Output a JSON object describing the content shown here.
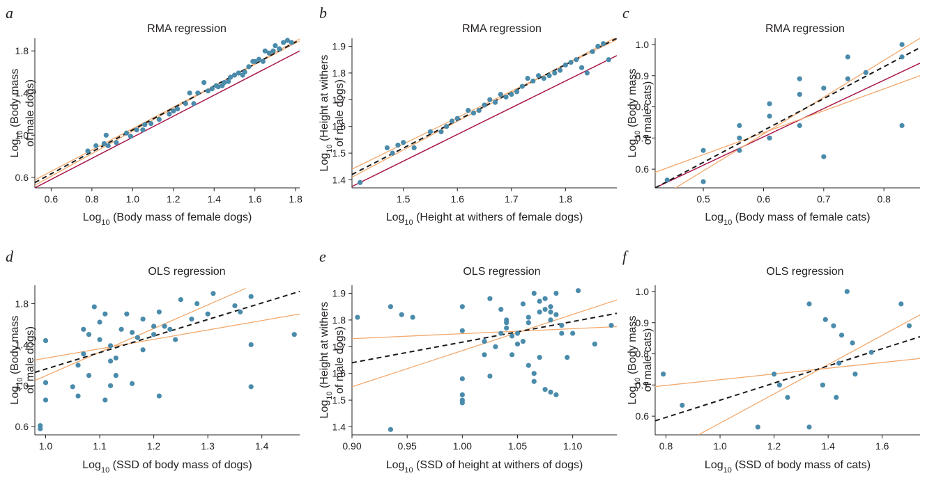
{
  "chart_data": [
    {
      "panel": "a",
      "title": "RMA regression",
      "type": "scatter",
      "xlabel": [
        "Log",
        "10",
        " (Body mass of female dogs)"
      ],
      "ylabel": [
        "Log",
        "10",
        " (Body mass",
        "of male dogs)"
      ],
      "xlim": [
        0.52,
        1.82
      ],
      "ylim": [
        0.5,
        1.92
      ],
      "xticks": [
        0.6,
        0.8,
        1.0,
        1.2,
        1.4,
        1.6,
        1.8
      ],
      "yticks": [
        0.6,
        1.0,
        1.4,
        1.8
      ],
      "tick_decimals": 1,
      "points": [
        [
          0.78,
          0.85
        ],
        [
          0.82,
          0.9
        ],
        [
          0.86,
          0.92
        ],
        [
          0.87,
          1.0
        ],
        [
          0.88,
          0.9
        ],
        [
          0.92,
          0.93
        ],
        [
          0.97,
          1.02
        ],
        [
          0.99,
          0.99
        ],
        [
          1.02,
          1.05
        ],
        [
          1.05,
          1.05
        ],
        [
          1.06,
          1.1
        ],
        [
          1.09,
          1.11
        ],
        [
          1.13,
          1.15
        ],
        [
          1.18,
          1.2
        ],
        [
          1.2,
          1.23
        ],
        [
          1.22,
          1.25
        ],
        [
          1.26,
          1.3
        ],
        [
          1.28,
          1.4
        ],
        [
          1.3,
          1.3
        ],
        [
          1.32,
          1.4
        ],
        [
          1.35,
          1.5
        ],
        [
          1.37,
          1.42
        ],
        [
          1.39,
          1.44
        ],
        [
          1.41,
          1.47
        ],
        [
          1.42,
          1.46
        ],
        [
          1.44,
          1.47
        ],
        [
          1.45,
          1.5
        ],
        [
          1.47,
          1.51
        ],
        [
          1.48,
          1.55
        ],
        [
          1.5,
          1.57
        ],
        [
          1.52,
          1.59
        ],
        [
          1.54,
          1.57
        ],
        [
          1.55,
          1.6
        ],
        [
          1.57,
          1.65
        ],
        [
          1.59,
          1.7
        ],
        [
          1.6,
          1.7
        ],
        [
          1.62,
          1.72
        ],
        [
          1.64,
          1.7
        ],
        [
          1.65,
          1.8
        ],
        [
          1.67,
          1.78
        ],
        [
          1.69,
          1.8
        ],
        [
          1.7,
          1.85
        ],
        [
          1.72,
          1.82
        ],
        [
          1.74,
          1.88
        ],
        [
          1.76,
          1.9
        ],
        [
          1.78,
          1.88
        ]
      ],
      "lines": [
        {
          "kind": "isometry",
          "from": [
            0.52,
            0.5
          ],
          "to": [
            1.82,
            1.8
          ]
        },
        {
          "kind": "ci",
          "from": [
            0.52,
            0.575
          ],
          "to": [
            1.82,
            1.895
          ]
        },
        {
          "kind": "ci",
          "from": [
            0.52,
            0.525
          ],
          "to": [
            1.82,
            1.915
          ]
        },
        {
          "kind": "fit",
          "from": [
            0.52,
            0.55
          ],
          "to": [
            1.82,
            1.905
          ]
        }
      ]
    },
    {
      "panel": "b",
      "title": "RMA regression",
      "type": "scatter",
      "xlabel": [
        "Log",
        "10",
        " (Height at withers of female dogs)"
      ],
      "ylabel": [
        "Log",
        "10",
        " (Height at withers",
        "of male dogs)"
      ],
      "xlim": [
        1.405,
        1.895
      ],
      "ylim": [
        1.37,
        1.93
      ],
      "xticks": [
        1.5,
        1.6,
        1.7,
        1.8
      ],
      "yticks": [
        1.4,
        1.5,
        1.6,
        1.7,
        1.8,
        1.9
      ],
      "tick_decimals": 1,
      "points": [
        [
          1.42,
          1.39
        ],
        [
          1.47,
          1.52
        ],
        [
          1.48,
          1.5
        ],
        [
          1.49,
          1.53
        ],
        [
          1.5,
          1.54
        ],
        [
          1.52,
          1.52
        ],
        [
          1.55,
          1.58
        ],
        [
          1.57,
          1.58
        ],
        [
          1.58,
          1.6
        ],
        [
          1.59,
          1.62
        ],
        [
          1.6,
          1.63
        ],
        [
          1.62,
          1.66
        ],
        [
          1.63,
          1.65
        ],
        [
          1.64,
          1.66
        ],
        [
          1.65,
          1.68
        ],
        [
          1.66,
          1.7
        ],
        [
          1.67,
          1.69
        ],
        [
          1.68,
          1.72
        ],
        [
          1.69,
          1.71
        ],
        [
          1.7,
          1.72
        ],
        [
          1.71,
          1.73
        ],
        [
          1.72,
          1.75
        ],
        [
          1.73,
          1.78
        ],
        [
          1.74,
          1.77
        ],
        [
          1.75,
          1.79
        ],
        [
          1.76,
          1.78
        ],
        [
          1.77,
          1.79
        ],
        [
          1.78,
          1.8
        ],
        [
          1.79,
          1.81
        ],
        [
          1.8,
          1.83
        ],
        [
          1.81,
          1.84
        ],
        [
          1.82,
          1.85
        ],
        [
          1.83,
          1.82
        ],
        [
          1.84,
          1.8
        ],
        [
          1.85,
          1.88
        ],
        [
          1.86,
          1.9
        ],
        [
          1.87,
          1.91
        ],
        [
          1.88,
          1.85
        ]
      ],
      "lines": [
        {
          "kind": "isometry",
          "from": [
            1.405,
            1.375
          ],
          "to": [
            1.895,
            1.865
          ]
        },
        {
          "kind": "ci",
          "from": [
            1.405,
            1.44
          ],
          "to": [
            1.895,
            1.925
          ]
        },
        {
          "kind": "ci",
          "from": [
            1.405,
            1.41
          ],
          "to": [
            1.895,
            1.935
          ]
        },
        {
          "kind": "fit",
          "from": [
            1.405,
            1.42
          ],
          "to": [
            1.895,
            1.93
          ]
        }
      ]
    },
    {
      "panel": "c",
      "title": "RMA regression",
      "type": "scatter",
      "xlabel": [
        "Log",
        "10",
        " (Body mass of female cats)"
      ],
      "ylabel": [
        "Log",
        "10",
        " (Body mass",
        "of male cats)"
      ],
      "xlim": [
        0.42,
        0.86
      ],
      "ylim": [
        0.54,
        1.02
      ],
      "xticks": [
        0.5,
        0.6,
        0.7,
        0.8
      ],
      "yticks": [
        0.6,
        0.7,
        0.8,
        0.9,
        1.0
      ],
      "tick_decimals": 1,
      "points": [
        [
          0.44,
          0.565
        ],
        [
          0.5,
          0.56
        ],
        [
          0.5,
          0.66
        ],
        [
          0.56,
          0.66
        ],
        [
          0.56,
          0.7
        ],
        [
          0.56,
          0.74
        ],
        [
          0.61,
          0.7
        ],
        [
          0.61,
          0.77
        ],
        [
          0.61,
          0.81
        ],
        [
          0.66,
          0.74
        ],
        [
          0.66,
          0.84
        ],
        [
          0.66,
          0.89
        ],
        [
          0.7,
          0.64
        ],
        [
          0.7,
          0.86
        ],
        [
          0.74,
          0.89
        ],
        [
          0.74,
          0.96
        ],
        [
          0.77,
          0.91
        ],
        [
          0.83,
          0.96
        ],
        [
          0.83,
          1.0
        ],
        [
          0.83,
          0.74
        ]
      ],
      "lines": [
        {
          "kind": "isometry",
          "from": [
            0.42,
            0.54
          ],
          "to": [
            0.86,
            0.94
          ]
        },
        {
          "kind": "ci",
          "from": [
            0.42,
            0.59
          ],
          "to": [
            0.86,
            0.9
          ]
        },
        {
          "kind": "ci",
          "from": [
            0.42,
            0.5
          ],
          "to": [
            0.86,
            1.02
          ]
        },
        {
          "kind": "fit",
          "from": [
            0.42,
            0.54
          ],
          "to": [
            0.86,
            0.99
          ]
        }
      ]
    },
    {
      "panel": "d",
      "title": "OLS regression",
      "type": "scatter",
      "xlabel": [
        "Log",
        "10",
        " (SSD of body mass of dogs)"
      ],
      "ylabel": [
        "Log",
        "10",
        " (Body mass",
        "of male dogs)"
      ],
      "xlim": [
        0.98,
        1.47
      ],
      "ylim": [
        0.52,
        1.98
      ],
      "xticks": [
        1.0,
        1.1,
        1.2,
        1.3,
        1.4
      ],
      "yticks": [
        0.6,
        1.0,
        1.4,
        1.8
      ],
      "tick_decimals": 1,
      "points": [
        [
          0.99,
          0.58
        ],
        [
          0.99,
          0.61
        ],
        [
          1.0,
          0.86
        ],
        [
          1.0,
          1.03
        ],
        [
          1.0,
          1.44
        ],
        [
          1.05,
          0.99
        ],
        [
          1.06,
          0.9
        ],
        [
          1.06,
          1.2
        ],
        [
          1.07,
          1.31
        ],
        [
          1.07,
          1.55
        ],
        [
          1.08,
          1.1
        ],
        [
          1.08,
          1.5
        ],
        [
          1.09,
          1.77
        ],
        [
          1.1,
          1.45
        ],
        [
          1.1,
          1.62
        ],
        [
          1.11,
          1.7
        ],
        [
          1.11,
          0.86
        ],
        [
          1.12,
          1.0
        ],
        [
          1.12,
          1.24
        ],
        [
          1.12,
          1.39
        ],
        [
          1.13,
          1.1
        ],
        [
          1.13,
          1.27
        ],
        [
          1.14,
          1.55
        ],
        [
          1.15,
          1.7
        ],
        [
          1.16,
          1.02
        ],
        [
          1.16,
          1.52
        ],
        [
          1.17,
          1.47
        ],
        [
          1.18,
          1.65
        ],
        [
          1.18,
          1.35
        ],
        [
          1.2,
          1.5
        ],
        [
          1.2,
          1.58
        ],
        [
          1.21,
          0.9
        ],
        [
          1.21,
          1.72
        ],
        [
          1.22,
          1.58
        ],
        [
          1.23,
          1.55
        ],
        [
          1.24,
          1.45
        ],
        [
          1.25,
          1.84
        ],
        [
          1.27,
          1.65
        ],
        [
          1.28,
          1.8
        ],
        [
          1.3,
          1.7
        ],
        [
          1.31,
          1.9
        ],
        [
          1.35,
          1.78
        ],
        [
          1.36,
          1.72
        ],
        [
          1.38,
          1.4
        ],
        [
          1.38,
          0.99
        ],
        [
          1.38,
          1.87
        ],
        [
          1.46,
          1.5
        ]
      ],
      "lines": [
        {
          "kind": "ci",
          "from": [
            0.98,
            1.25
          ],
          "to": [
            1.47,
            1.7
          ]
        },
        {
          "kind": "ci",
          "from": [
            0.98,
            1.05
          ],
          "to": [
            1.37,
            1.95
          ]
        },
        {
          "kind": "fit",
          "from": [
            0.98,
            1.13
          ],
          "to": [
            1.47,
            1.92
          ]
        }
      ]
    },
    {
      "panel": "e",
      "title": "OLS regression",
      "type": "scatter",
      "xlabel": [
        "Log",
        "10",
        " (SSD of height at withers of dogs)"
      ],
      "ylabel": [
        "Log",
        "10",
        " (Height at withers",
        "of male dogs)"
      ],
      "xlim": [
        0.9,
        1.14
      ],
      "ylim": [
        1.37,
        1.93
      ],
      "xticks": [
        0.9,
        0.95,
        1.0,
        1.05,
        1.1
      ],
      "yticks": [
        1.4,
        1.5,
        1.6,
        1.7,
        1.8,
        1.9
      ],
      "tick_decimals": 2,
      "tick_decimals_y": 1,
      "points": [
        [
          0.905,
          1.81
        ],
        [
          0.935,
          1.85
        ],
        [
          0.935,
          1.39
        ],
        [
          0.945,
          1.82
        ],
        [
          0.955,
          1.81
        ],
        [
          1.0,
          1.85
        ],
        [
          1.0,
          1.76
        ],
        [
          1.0,
          1.58
        ],
        [
          1.0,
          1.52
        ],
        [
          1.0,
          1.5
        ],
        [
          1.0,
          1.49
        ],
        [
          1.02,
          1.72
        ],
        [
          1.02,
          1.67
        ],
        [
          1.025,
          1.59
        ],
        [
          1.025,
          1.88
        ],
        [
          1.03,
          1.7
        ],
        [
          1.035,
          1.75
        ],
        [
          1.035,
          1.84
        ],
        [
          1.04,
          1.8
        ],
        [
          1.04,
          1.79
        ],
        [
          1.04,
          1.77
        ],
        [
          1.045,
          1.74
        ],
        [
          1.045,
          1.67
        ],
        [
          1.05,
          1.75
        ],
        [
          1.05,
          1.71
        ],
        [
          1.055,
          1.86
        ],
        [
          1.055,
          1.72
        ],
        [
          1.06,
          1.63
        ],
        [
          1.06,
          1.79
        ],
        [
          1.06,
          1.81
        ],
        [
          1.065,
          1.6
        ],
        [
          1.065,
          1.57
        ],
        [
          1.065,
          1.9
        ],
        [
          1.07,
          1.87
        ],
        [
          1.07,
          1.83
        ],
        [
          1.07,
          1.66
        ],
        [
          1.075,
          1.88
        ],
        [
          1.075,
          1.54
        ],
        [
          1.075,
          1.84
        ],
        [
          1.08,
          1.85
        ],
        [
          1.08,
          1.83
        ],
        [
          1.08,
          1.8
        ],
        [
          1.08,
          1.53
        ],
        [
          1.085,
          1.52
        ],
        [
          1.085,
          1.9
        ],
        [
          1.085,
          1.82
        ],
        [
          1.09,
          1.75
        ],
        [
          1.09,
          1.78
        ],
        [
          1.095,
          1.66
        ],
        [
          1.1,
          1.75
        ],
        [
          1.105,
          1.91
        ],
        [
          1.12,
          1.71
        ],
        [
          1.135,
          1.78
        ]
      ],
      "lines": [
        {
          "kind": "ci",
          "from": [
            0.9,
            1.73
          ],
          "to": [
            1.14,
            1.775
          ]
        },
        {
          "kind": "ci",
          "from": [
            0.9,
            1.55
          ],
          "to": [
            1.14,
            1.875
          ]
        },
        {
          "kind": "fit",
          "from": [
            0.9,
            1.64
          ],
          "to": [
            1.14,
            1.825
          ]
        }
      ]
    },
    {
      "panel": "f",
      "title": "OLS regression",
      "type": "scatter",
      "xlabel": [
        "Log",
        "10",
        " (SSD of body mass of cats)"
      ],
      "ylabel": [
        "Log",
        "10",
        " (Body mass",
        "of male cats)"
      ],
      "xlim": [
        0.76,
        1.74
      ],
      "ylim": [
        0.54,
        1.02
      ],
      "xticks": [
        0.8,
        1.0,
        1.2,
        1.4,
        1.6
      ],
      "yticks": [
        0.6,
        0.7,
        0.8,
        0.9,
        1.0
      ],
      "tick_decimals": 1,
      "points": [
        [
          0.79,
          0.735
        ],
        [
          0.86,
          0.635
        ],
        [
          1.14,
          0.565
        ],
        [
          1.2,
          0.735
        ],
        [
          1.22,
          0.7
        ],
        [
          1.25,
          0.66
        ],
        [
          1.33,
          0.96
        ],
        [
          1.33,
          0.565
        ],
        [
          1.38,
          0.7
        ],
        [
          1.39,
          0.91
        ],
        [
          1.42,
          0.89
        ],
        [
          1.43,
          0.66
        ],
        [
          1.44,
          0.77
        ],
        [
          1.45,
          0.86
        ],
        [
          1.47,
          1.0
        ],
        [
          1.49,
          0.835
        ],
        [
          1.5,
          0.735
        ],
        [
          1.56,
          0.805
        ],
        [
          1.67,
          0.96
        ],
        [
          1.7,
          0.89
        ]
      ],
      "lines": [
        {
          "kind": "ci",
          "from": [
            0.76,
            0.695
          ],
          "to": [
            1.74,
            0.785
          ]
        },
        {
          "kind": "ci",
          "from": [
            0.92,
            0.54
          ],
          "to": [
            1.74,
            0.925
          ]
        },
        {
          "kind": "fit",
          "from": [
            0.76,
            0.585
          ],
          "to": [
            1.74,
            0.855
          ]
        }
      ]
    }
  ],
  "colors": {
    "points": "#4a8bab",
    "isometry_line": "#a8174a",
    "ci_lines": "#f2a86c",
    "fit_line": "#1a1a1a",
    "axes": "#231f20"
  }
}
